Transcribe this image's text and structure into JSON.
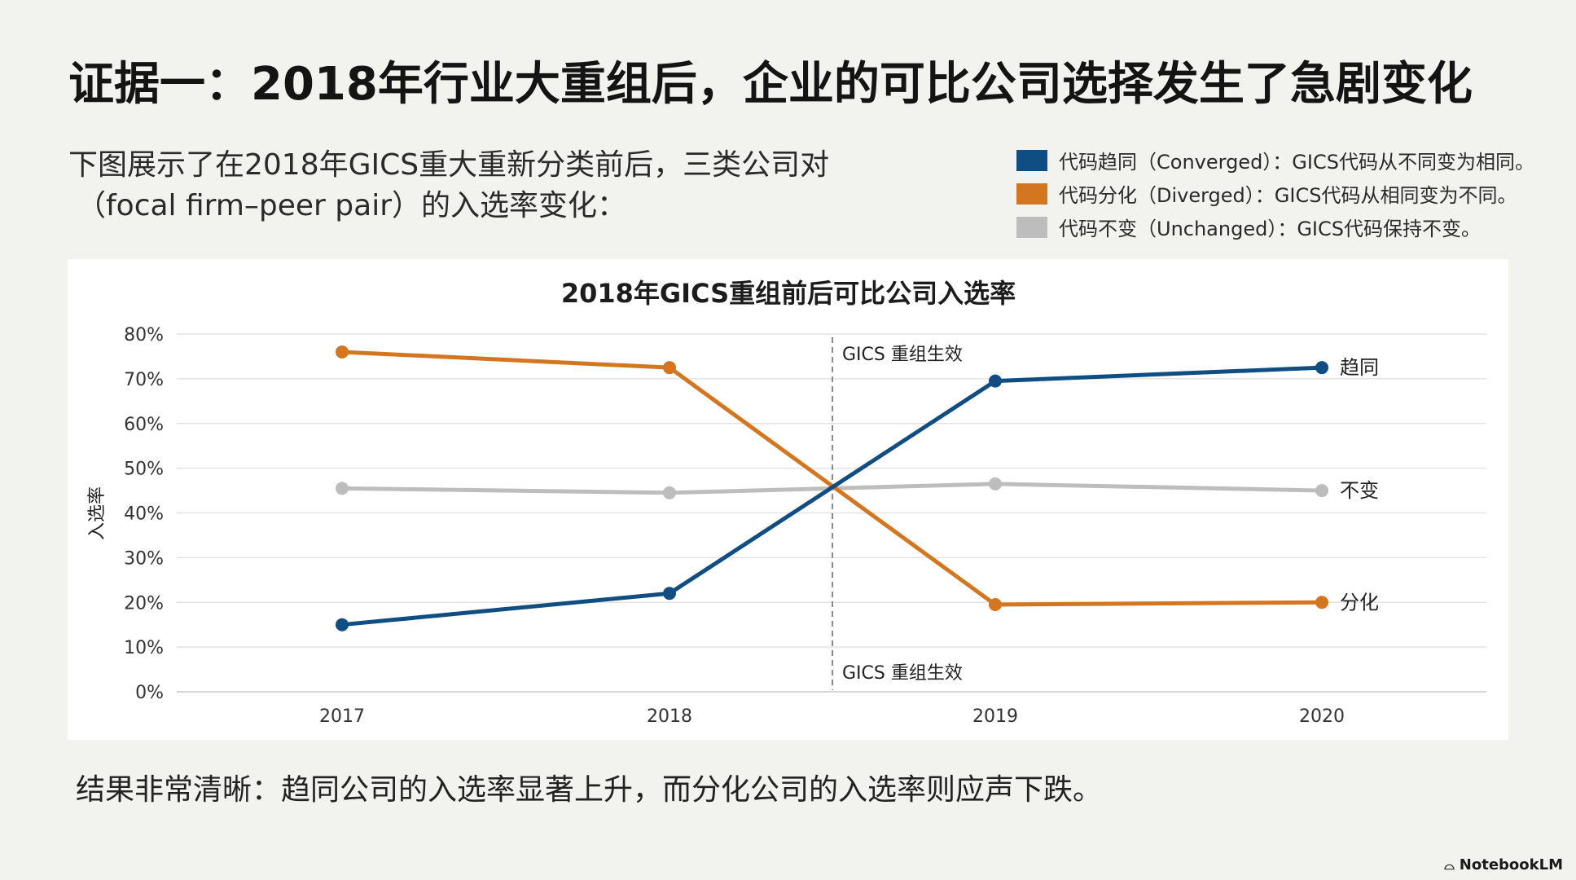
{
  "slide": {
    "title": "证据一：2018年行业大重组后，企业的可比公司选择发生了急剧变化",
    "intro_line1": "下图展示了在2018年GICS重大重新分类前后，三类公司对",
    "intro_line2": "（focal firm–peer pair）的入选率变化：",
    "conclusion": "结果非常清晰：趋同公司的入选率显著上升，而分化公司的入选率则应声下跌。",
    "brand": "NotebookLM"
  },
  "legend": [
    {
      "label": "代码趋同（Converged）：GICS代码从不同变为相同。",
      "color": "#0f4d82"
    },
    {
      "label": "代码分化（Diverged）：GICS代码从相同变为不同。",
      "color": "#d3761f"
    },
    {
      "label": "代码不变（Unchanged）：GICS代码保持不变。",
      "color": "#bdbdbd"
    }
  ],
  "chart_data": {
    "type": "line",
    "title": "2018年GICS重组前后可比公司入选率",
    "ylabel": "入选率",
    "xlabel": "",
    "x": [
      "2017",
      "2018",
      "2019",
      "2020"
    ],
    "ylim": [
      0,
      80
    ],
    "yticks": [
      "0%",
      "10%",
      "20%",
      "30%",
      "40%",
      "50%",
      "60%",
      "70%",
      "80%"
    ],
    "grid": true,
    "series": [
      {
        "name": "代码趋同（Converged）",
        "end_label": "趋同",
        "color": "#0f4d82",
        "values": [
          15,
          22,
          69.5,
          72.5
        ]
      },
      {
        "name": "代码分化（Diverged）",
        "end_label": "分化",
        "color": "#d3761f",
        "values": [
          76,
          72.5,
          19.5,
          20
        ]
      },
      {
        "name": "代码不变（Unchanged）",
        "end_label": "不变",
        "color": "#bdbdbd",
        "values": [
          45.5,
          44.5,
          46.5,
          45
        ]
      }
    ],
    "annotation": {
      "text": "GICS 重组生效",
      "between": [
        "2018",
        "2019"
      ]
    }
  }
}
